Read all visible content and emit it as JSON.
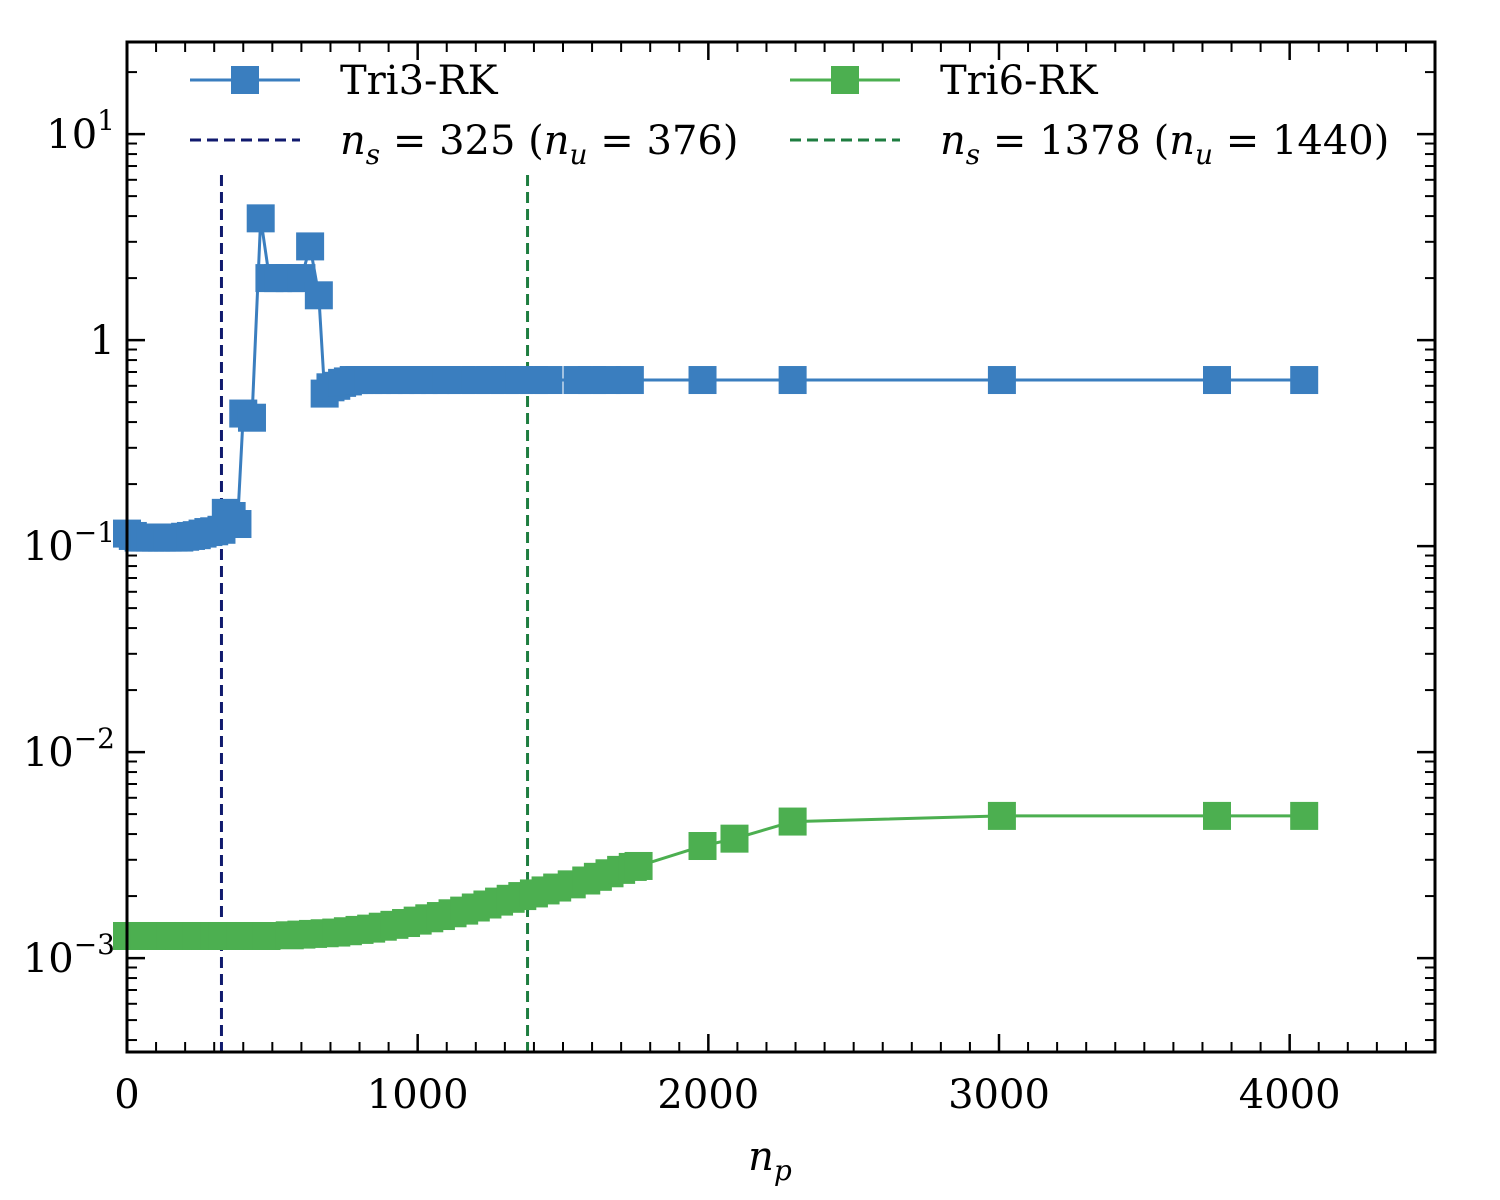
{
  "chart_data": {
    "type": "line",
    "xlabel": "n",
    "xlabel_sub": "p",
    "ylabel": "",
    "title": "",
    "xlim": [
      0,
      4500
    ],
    "ylim": [
      0.00035,
      28
    ],
    "yscale": "log",
    "grid": false,
    "legend_placement": "top",
    "x_ticks": [
      0,
      1000,
      2000,
      3000,
      4000
    ],
    "x_tick_labels": [
      "0",
      "1000",
      "2000",
      "3000",
      "4000"
    ],
    "y_ticks": [
      0.001,
      0.01,
      0.1,
      1,
      10
    ],
    "y_tick_labels": [
      {
        "base": "10",
        "exp": "−3"
      },
      {
        "base": "10",
        "exp": "−2"
      },
      {
        "base": "10",
        "exp": "−1"
      },
      {
        "base": "1",
        "exp": ""
      },
      {
        "base": "10",
        "exp": "1"
      }
    ],
    "series": [
      {
        "name": "Tri3-RK",
        "color": "#3a7ebf",
        "x": [
          0,
          20,
          40,
          60,
          80,
          100,
          120,
          140,
          160,
          180,
          200,
          220,
          240,
          260,
          280,
          300,
          325,
          340,
          360,
          380,
          400,
          430,
          460,
          490,
          520,
          560,
          600,
          630,
          660,
          680,
          700,
          720,
          740,
          760,
          780,
          800,
          830,
          860,
          900,
          940,
          980,
          1020,
          1060,
          1100,
          1150,
          1200,
          1250,
          1300,
          1350,
          1400,
          1450,
          1550,
          1600,
          1650,
          1730,
          1980,
          2290,
          3010,
          3750,
          4050
        ],
        "y": [
          0.115,
          0.112,
          0.11,
          0.11,
          0.11,
          0.11,
          0.11,
          0.11,
          0.11,
          0.11,
          0.111,
          0.112,
          0.113,
          0.115,
          0.117,
          0.118,
          0.12,
          0.145,
          0.14,
          0.128,
          0.44,
          0.42,
          3.9,
          2.0,
          2.0,
          2.0,
          2.0,
          2.85,
          1.65,
          0.55,
          0.59,
          0.6,
          0.62,
          0.63,
          0.64,
          0.64,
          0.64,
          0.64,
          0.64,
          0.64,
          0.64,
          0.64,
          0.64,
          0.64,
          0.64,
          0.64,
          0.64,
          0.64,
          0.64,
          0.64,
          0.64,
          0.64,
          0.64,
          0.64,
          0.64,
          0.64,
          0.64,
          0.64,
          0.64,
          0.64
        ]
      },
      {
        "name": "Tri6-RK",
        "color": "#4caf50",
        "x": [
          0,
          30,
          60,
          90,
          120,
          150,
          180,
          210,
          240,
          270,
          300,
          330,
          360,
          390,
          420,
          450,
          480,
          560,
          600,
          640,
          680,
          720,
          760,
          800,
          840,
          880,
          920,
          960,
          1000,
          1040,
          1080,
          1120,
          1160,
          1200,
          1240,
          1280,
          1320,
          1360,
          1400,
          1440,
          1480,
          1530,
          1580,
          1620,
          1660,
          1700,
          1740,
          1760,
          1980,
          2090,
          2290,
          3010,
          3750,
          4050
        ],
        "y": [
          0.00128,
          0.00128,
          0.00128,
          0.00128,
          0.00128,
          0.00128,
          0.00128,
          0.00128,
          0.00128,
          0.00128,
          0.00128,
          0.00128,
          0.00128,
          0.00128,
          0.00128,
          0.00128,
          0.00128,
          0.00129,
          0.0013,
          0.00131,
          0.00132,
          0.00133,
          0.00135,
          0.00137,
          0.00139,
          0.00142,
          0.00145,
          0.00148,
          0.00152,
          0.00156,
          0.0016,
          0.00165,
          0.0017,
          0.00176,
          0.00182,
          0.00188,
          0.00194,
          0.002,
          0.00206,
          0.00213,
          0.0022,
          0.00228,
          0.00238,
          0.00248,
          0.00258,
          0.00268,
          0.00277,
          0.0028,
          0.0035,
          0.0038,
          0.0046,
          0.0049,
          0.0049,
          0.0049
        ]
      }
    ],
    "vlines": [
      {
        "x": 325,
        "color": "#101a6e",
        "label_var": "n",
        "label_sub": "s",
        "label_val": "= 325",
        "paren_var": "n",
        "paren_sub": "u",
        "paren_val": "= 376"
      },
      {
        "x": 1378,
        "color": "#1e7d40",
        "label_var": "n",
        "label_sub": "s",
        "label_val": "= 1378",
        "paren_var": "n",
        "paren_sub": "u",
        "paren_val": "= 1440"
      }
    ]
  }
}
